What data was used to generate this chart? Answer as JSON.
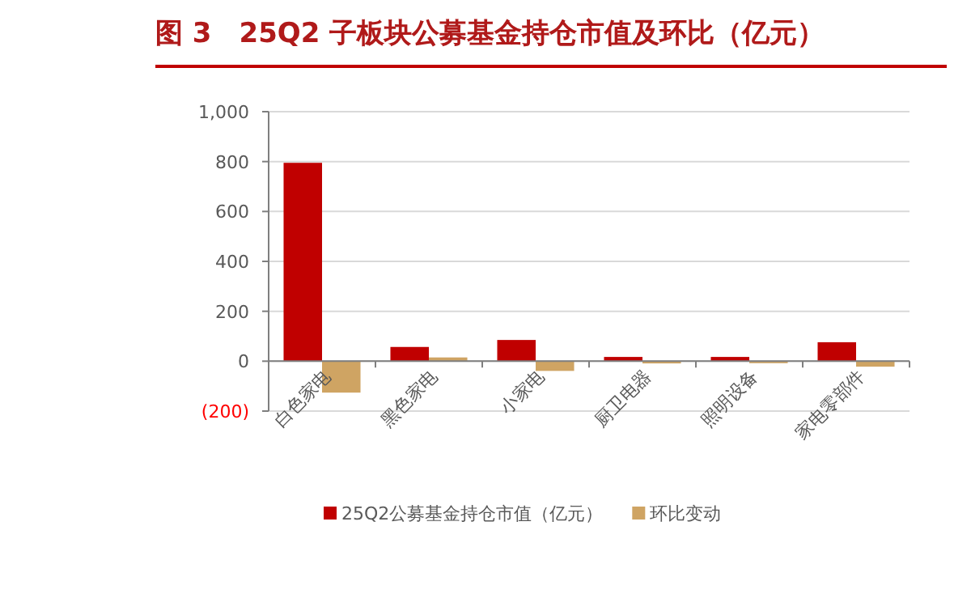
{
  "chart_data": {
    "type": "bar",
    "title": "图 3　25Q2 子板块公募基金持仓市值及环比（亿元）",
    "categories": [
      "白色家电",
      "黑色家电",
      "小家电",
      "厨卫电器",
      "照明设备",
      "家电零部件"
    ],
    "series": [
      {
        "name": "25Q2公募基金持仓市值（亿元）",
        "color": "#c00000",
        "values": [
          795,
          57,
          85,
          17,
          17,
          76
        ]
      },
      {
        "name": "环比变动",
        "color": "#cfa463",
        "values": [
          -126,
          15,
          -39,
          -9,
          -8,
          -22
        ]
      }
    ],
    "ylim": [
      -200,
      1000
    ],
    "yticks": [
      {
        "value": -200,
        "label": "(200)"
      },
      0,
      200,
      400,
      600,
      {
        "value": 800,
        "label": "800"
      },
      {
        "value": 1000,
        "label": "1,000"
      }
    ],
    "grid": "y",
    "legend": "bottom"
  }
}
